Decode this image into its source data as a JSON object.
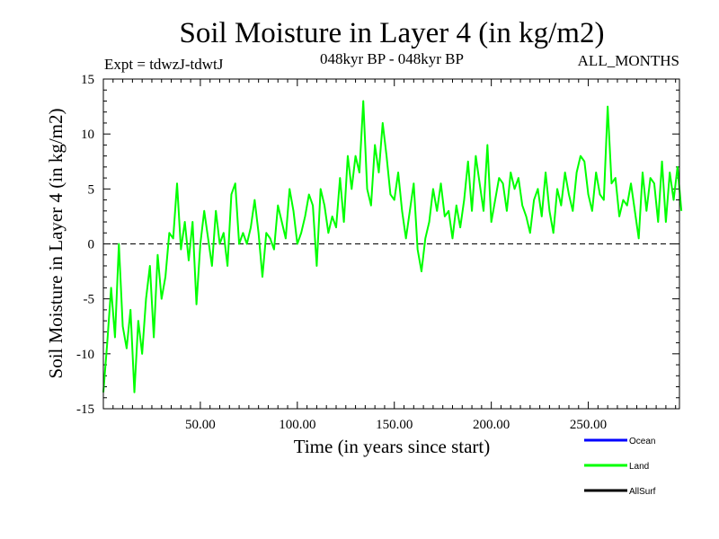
{
  "chart_data": {
    "type": "line",
    "title": "Soil Moisture in Layer 4 (in kg/m2)",
    "subtitle_left": "Expt = tdwzJ-tdwtJ",
    "subtitle_center": "048kyr BP - 048kyr BP",
    "subtitle_right": "ALL_MONTHS",
    "xlabel": "Time (in years since start)",
    "ylabel": "Soil Moisture in Layer 4 (in kg/m2)",
    "xlim": [
      0,
      297
    ],
    "ylim": [
      -15,
      15
    ],
    "x_ticks": [
      {
        "value": 50,
        "label": "50.00"
      },
      {
        "value": 100,
        "label": "100.00"
      },
      {
        "value": 150,
        "label": "150.00"
      },
      {
        "value": 200,
        "label": "200.00"
      },
      {
        "value": 250,
        "label": "250.00"
      }
    ],
    "y_ticks": [
      {
        "value": 15,
        "label": "15"
      },
      {
        "value": 10,
        "label": "10"
      },
      {
        "value": 5,
        "label": "5"
      },
      {
        "value": 0,
        "label": "0"
      },
      {
        "value": -5,
        "label": "-5"
      },
      {
        "value": -10,
        "label": "-10"
      },
      {
        "value": -15,
        "label": "-15"
      }
    ],
    "zero_line": "dashed",
    "legend_position": "bottom-right",
    "legend": [
      {
        "name": "Ocean",
        "color": "#0000ff"
      },
      {
        "name": "Land",
        "color": "#00ff00"
      },
      {
        "name": "AllSurf",
        "color": "#000000"
      }
    ],
    "series": [
      {
        "name": "Land",
        "color": "#00ff00",
        "x_start": 0,
        "x_step": 2,
        "values": [
          -13.5,
          -9.0,
          -4.0,
          -8.5,
          0.0,
          -7.5,
          -9.5,
          -6.0,
          -13.5,
          -7.0,
          -10.0,
          -5.0,
          -2.0,
          -8.5,
          -1.0,
          -5.0,
          -3.0,
          1.0,
          0.5,
          5.5,
          -0.5,
          2.0,
          -1.5,
          2.0,
          -5.5,
          0.0,
          3.0,
          0.5,
          -2.0,
          3.0,
          0.0,
          1.0,
          -2.0,
          4.5,
          5.5,
          0.0,
          1.0,
          0.0,
          1.5,
          4.0,
          1.0,
          -3.0,
          1.0,
          0.5,
          -0.5,
          3.5,
          2.0,
          0.5,
          5.0,
          3.0,
          0.0,
          1.0,
          2.5,
          4.5,
          3.5,
          -2.0,
          5.0,
          3.5,
          1.0,
          2.5,
          1.5,
          6.0,
          2.0,
          8.0,
          5.0,
          8.0,
          6.5,
          13.0,
          5.0,
          3.5,
          9.0,
          6.5,
          11.0,
          8.0,
          4.5,
          4.0,
          6.5,
          3.0,
          0.5,
          3.0,
          5.5,
          -0.5,
          -2.5,
          0.5,
          2.0,
          5.0,
          3.0,
          5.5,
          2.5,
          3.0,
          0.5,
          3.5,
          1.5,
          4.0,
          7.5,
          3.0,
          8.0,
          5.5,
          3.0,
          9.0,
          2.0,
          4.0,
          6.0,
          5.5,
          3.0,
          6.5,
          5.0,
          6.0,
          3.5,
          2.5,
          1.0,
          4.0,
          5.0,
          2.5,
          6.5,
          3.0,
          1.0,
          5.0,
          3.5,
          6.5,
          4.5,
          3.0,
          6.5,
          8.0,
          7.5,
          4.5,
          3.0,
          6.5,
          4.5,
          4.0,
          12.5,
          5.5,
          6.0,
          2.5,
          4.0,
          3.5,
          5.5,
          3.0,
          0.5,
          6.5,
          3.0,
          6.0,
          5.5,
          2.0,
          7.5,
          2.0,
          6.5,
          4.0,
          7.0,
          3.0
        ]
      }
    ]
  }
}
